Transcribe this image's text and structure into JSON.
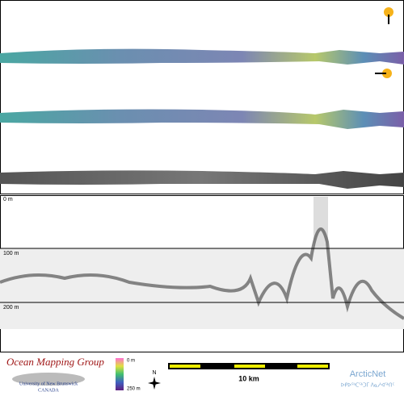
{
  "profile": {
    "depth_labels": [
      "0 m",
      "100 m",
      "200 m"
    ]
  },
  "legend": {
    "group": "Ocean Mapping Group",
    "university": "University of New Brunswick",
    "country": "CANADA",
    "color_scale": [
      "0 m",
      "250 m"
    ],
    "north": "N",
    "scale_bar": "10 km",
    "partner": "ArcticNet",
    "partner_syllabics": "ᐅᑭᐅᖅᑕᖅᑐᒥ ᐱᓇᓱᐊᖅᑎᑦ"
  }
}
